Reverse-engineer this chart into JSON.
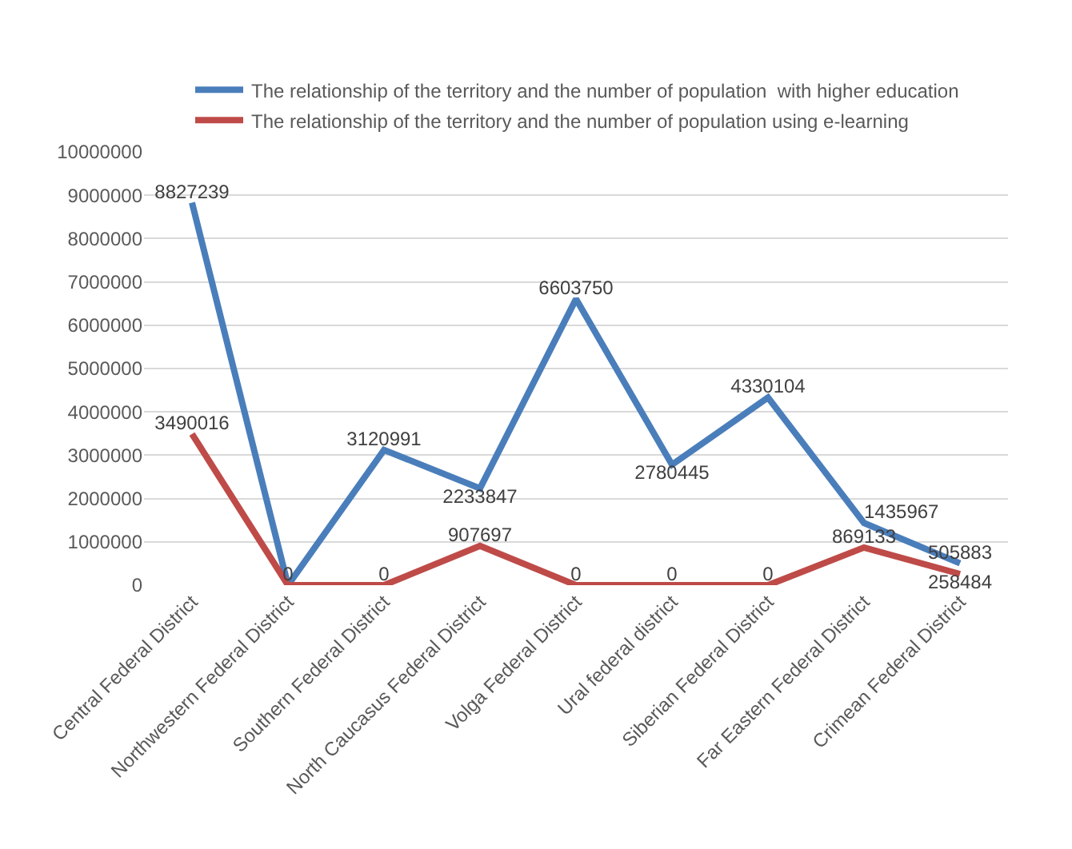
{
  "chart_data": {
    "type": "line",
    "categories": [
      "Central Federal District",
      "Northwestern Federal District",
      "Southern Federal District",
      "North Caucasus Federal District",
      "Volga Federal District",
      "Ural federal district",
      "Siberian Federal District",
      "Far Eastern Federal District",
      "Crimean Federal District"
    ],
    "series": [
      {
        "name": "The relationship of the territory and the number of population  with higher education",
        "color": "#4a7ebb",
        "values": [
          8827239,
          0,
          3120991,
          2233847,
          6603750,
          2780445,
          4330104,
          1435967,
          505883
        ],
        "value_labels": [
          "8827239",
          null,
          "3120991",
          "2233847",
          "6603750",
          "2780445",
          "4330104",
          "1435967",
          "505883"
        ]
      },
      {
        "name": "The relationship of the territory and the number of population using e-learning",
        "color": "#be4b48",
        "values": [
          3490016,
          0,
          0,
          907697,
          0,
          0,
          0,
          869133,
          258484
        ],
        "value_labels": [
          "3490016",
          "0",
          "0",
          "907697",
          "0",
          "0",
          "0",
          "869133",
          "258484"
        ]
      }
    ],
    "ylim": [
      0,
      10000000
    ],
    "yticks": [
      0,
      1000000,
      2000000,
      3000000,
      4000000,
      5000000,
      6000000,
      7000000,
      8000000,
      9000000,
      10000000
    ],
    "grid": "y",
    "legend": "top",
    "marker": "none",
    "line_style": "solid"
  }
}
